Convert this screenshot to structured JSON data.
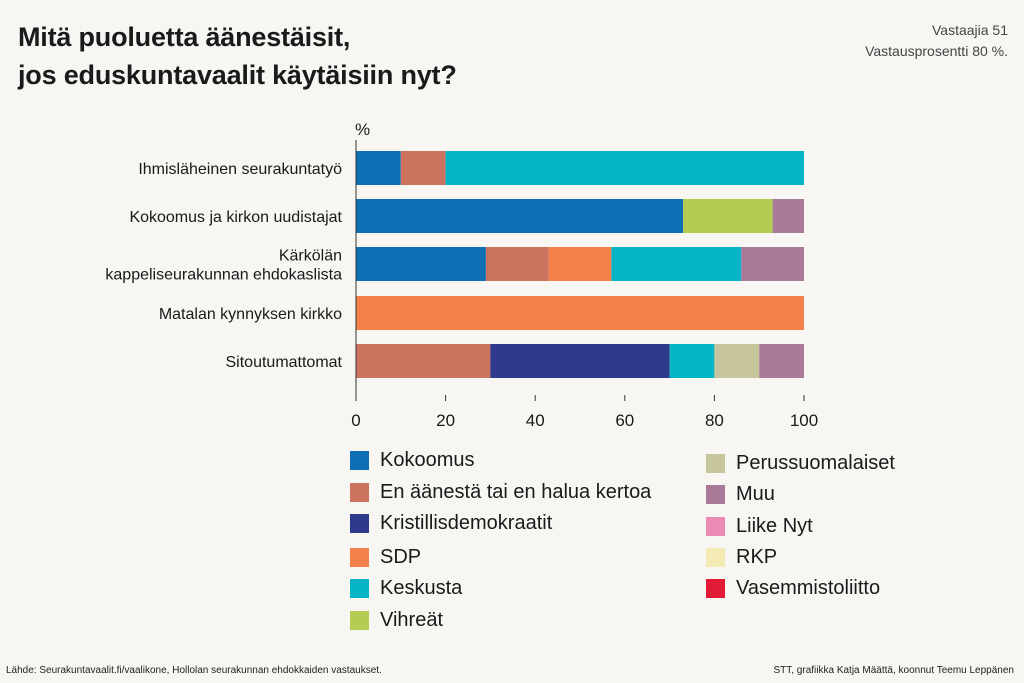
{
  "title_line1": "Mitä puoluetta äänestäisit,",
  "title_line2": "jos eduskuntavaalit käytäisiin nyt?",
  "respondents": "Vastaajia 51",
  "response_rate": "Vastausprosentti 80 %.",
  "source": "Lähde: Seurakuntavaalit.fi/vaalikone, Hollolan seurakunnan ehdokkaiden vastaukset.",
  "credit": "STT, grafiikka Katja Määttä, koonnut Teemu Leppänen",
  "chart_data": {
    "type": "bar",
    "orientation": "horizontal",
    "stacked": true,
    "ylabel": "%",
    "xlim": [
      0,
      100
    ],
    "xticks": [
      "0",
      "20",
      "40",
      "60",
      "80",
      "100"
    ],
    "categories": [
      "Ihmisläheinen seurakuntatyö",
      "Kokoomus ja kirkon uudistajat",
      "Kärkölän kappeliseurakunnan ehdokaslista",
      "Matalan kynnyksen kirkko",
      "Sitoutumattomat"
    ],
    "category_lines": [
      [
        "Ihmisläheinen seurakuntatyö"
      ],
      [
        "Kokoomus ja kirkon uudistajat"
      ],
      [
        "Kärkölän",
        "kappeliseurakunnan ehdokaslista"
      ],
      [
        "Matalan kynnyksen kirkko"
      ],
      [
        "Sitoutumattomat"
      ]
    ],
    "series": [
      {
        "name": "Kokoomus",
        "color": "#0f6fb5",
        "values": [
          10,
          73,
          29,
          0,
          0
        ]
      },
      {
        "name": "En äänestä tai en halua kertoa",
        "color": "#cc735f",
        "values": [
          10,
          0,
          14,
          0,
          30
        ]
      },
      {
        "name": "Kristillisdemokraatit",
        "color": "#2e3a8c",
        "values": [
          0,
          0,
          0,
          0,
          40
        ]
      },
      {
        "name": "SDP",
        "color": "#f48149",
        "values": [
          0,
          0,
          14,
          100,
          0
        ]
      },
      {
        "name": "Keskusta",
        "color": "#05b4c6",
        "values": [
          80,
          0,
          29,
          0,
          10
        ]
      },
      {
        "name": "Vihreät",
        "color": "#b5cc52",
        "values": [
          0,
          20,
          0,
          0,
          0
        ]
      },
      {
        "name": "Perussuomalaiset",
        "color": "#c6c59c",
        "values": [
          0,
          0,
          0,
          0,
          10
        ]
      },
      {
        "name": "Muu",
        "color": "#a87a98",
        "values": [
          0,
          7,
          14,
          0,
          10
        ]
      },
      {
        "name": "Liike Nyt",
        "color": "#ec8cb4",
        "values": [
          0,
          0,
          0,
          0,
          0
        ]
      },
      {
        "name": "RKP",
        "color": "#f4eab4",
        "values": [
          0,
          0,
          0,
          0,
          0
        ]
      },
      {
        "name": "Vasemmistoliitto",
        "color": "#e31a35",
        "values": [
          0,
          0,
          0,
          0,
          0
        ]
      }
    ]
  }
}
